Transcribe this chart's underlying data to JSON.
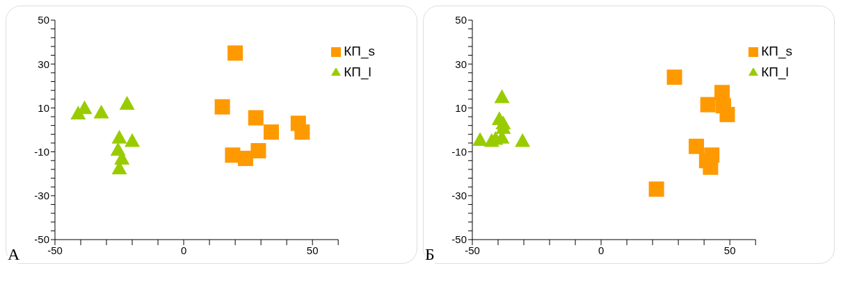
{
  "chart_data": [
    {
      "type": "scatter",
      "annotations": [
        "А"
      ],
      "xlim": [
        -50,
        60
      ],
      "ylim": [
        -50,
        50
      ],
      "xticks": [
        -50,
        {
          "value": -40,
          "label": null
        },
        {
          "value": -30,
          "label": null
        },
        {
          "value": -20,
          "label": null
        },
        {
          "value": -10,
          "label": null
        },
        0,
        {
          "value": 10,
          "label": null
        },
        {
          "value": 20,
          "label": null
        },
        {
          "value": 30,
          "label": null
        },
        {
          "value": 40,
          "label": null
        },
        50,
        {
          "value": 60,
          "label": null
        }
      ],
      "yticks": [
        -50,
        {
          "value": -46,
          "label": null
        },
        {
          "value": -42,
          "label": null
        },
        {
          "value": -38,
          "label": null
        },
        {
          "value": -34,
          "label": null
        },
        -30,
        {
          "value": -26,
          "label": null
        },
        {
          "value": -22,
          "label": null
        },
        {
          "value": -18,
          "label": null
        },
        {
          "value": -14,
          "label": null
        },
        -10,
        {
          "value": -6,
          "label": null
        },
        {
          "value": -2,
          "label": null
        },
        {
          "value": 2,
          "label": null
        },
        {
          "value": 6,
          "label": null
        },
        10,
        {
          "value": 14,
          "label": null
        },
        {
          "value": 18,
          "label": null
        },
        {
          "value": 22,
          "label": null
        },
        {
          "value": 26,
          "label": null
        },
        30,
        {
          "value": 34,
          "label": null
        },
        {
          "value": 38,
          "label": null
        },
        {
          "value": 42,
          "label": null
        },
        {
          "value": 46,
          "label": null
        },
        50
      ],
      "grid": false,
      "legend": "top right",
      "series": [
        {
          "name": "КП_s",
          "color": "#ff9900",
          "marker": "square",
          "x": [
            20,
            15,
            28,
            34,
            44.5,
            46,
            19,
            23,
            24,
            29
          ],
          "values": [
            35,
            10.5,
            5.5,
            -1,
            3,
            -1,
            -11.5,
            null,
            -13,
            -9.5
          ]
        },
        {
          "name": "КП_l",
          "color": "#99cc00",
          "marker": "triangle",
          "x": [
            -41,
            -38.5,
            -32,
            -22,
            -25,
            -20,
            -25.5,
            -24,
            -25
          ],
          "values": [
            7.5,
            10,
            8,
            12,
            -3.5,
            -5,
            -9,
            -13,
            -17.5
          ]
        }
      ]
    },
    {
      "type": "scatter",
      "annotations": [
        "Б"
      ],
      "xlim": [
        -50,
        60
      ],
      "ylim": [
        -50,
        50
      ],
      "xticks": [
        -50,
        {
          "value": -40,
          "label": null
        },
        {
          "value": -30,
          "label": null
        },
        {
          "value": -20,
          "label": null
        },
        {
          "value": -10,
          "label": null
        },
        0,
        {
          "value": 10,
          "label": null
        },
        {
          "value": 20,
          "label": null
        },
        {
          "value": 30,
          "label": null
        },
        {
          "value": 40,
          "label": null
        },
        50,
        {
          "value": 60,
          "label": null
        }
      ],
      "yticks": [
        -50,
        {
          "value": -46,
          "label": null
        },
        {
          "value": -42,
          "label": null
        },
        {
          "value": -38,
          "label": null
        },
        {
          "value": -34,
          "label": null
        },
        -30,
        {
          "value": -26,
          "label": null
        },
        {
          "value": -22,
          "label": null
        },
        {
          "value": -18,
          "label": null
        },
        {
          "value": -14,
          "label": null
        },
        -10,
        {
          "value": -6,
          "label": null
        },
        {
          "value": -2,
          "label": null
        },
        {
          "value": 2,
          "label": null
        },
        {
          "value": 6,
          "label": null
        },
        10,
        {
          "value": 14,
          "label": null
        },
        {
          "value": 18,
          "label": null
        },
        {
          "value": 22,
          "label": null
        },
        {
          "value": 26,
          "label": null
        },
        30,
        {
          "value": 34,
          "label": null
        },
        {
          "value": 38,
          "label": null
        },
        {
          "value": 42,
          "label": null
        },
        {
          "value": 46,
          "label": null
        },
        50
      ],
      "grid": false,
      "legend": "top right",
      "series": [
        {
          "name": "КП_s",
          "color": "#ff9900",
          "marker": "square",
          "x": [
            28.5,
            41.5,
            47,
            47.5,
            49,
            37,
            43,
            41,
            42.5,
            21.5
          ],
          "values": [
            24,
            11.5,
            17,
            11,
            7,
            -7.5,
            -11.5,
            -14,
            -17,
            -27
          ]
        },
        {
          "name": "КП_l",
          "color": "#99cc00",
          "marker": "triangle",
          "x": [
            -38.5,
            -39.5,
            -38,
            -38,
            -47,
            -42.5,
            -41,
            -38.5,
            -30.5
          ],
          "values": [
            15,
            5,
            3,
            1,
            -4.5,
            -5,
            -4,
            -3.5,
            -5
          ]
        }
      ]
    }
  ]
}
